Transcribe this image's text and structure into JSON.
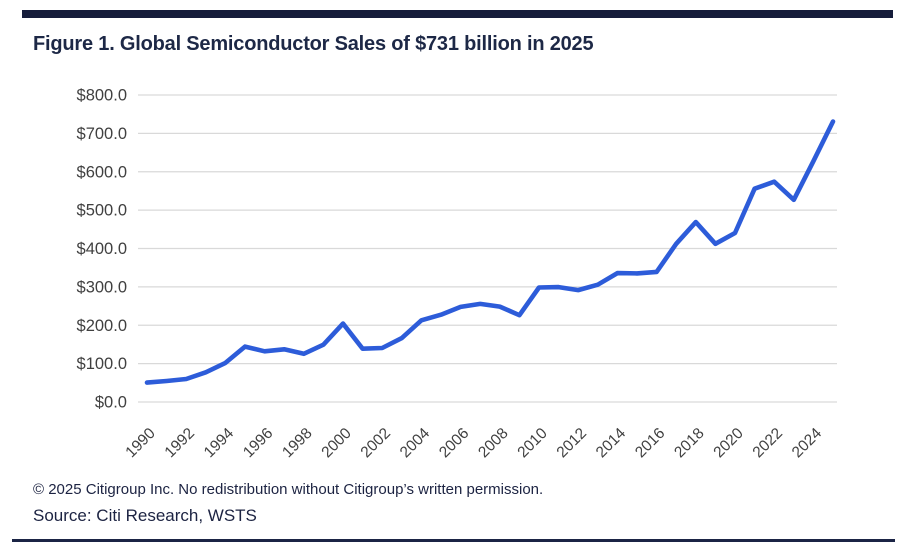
{
  "header": {
    "title": "Figure 1. Global Semiconductor Sales of $731 billion in 2025"
  },
  "footer": {
    "copyright": "© 2025 Citigroup Inc. No redistribution without Citigroup’s written permission.",
    "source": "Source: Citi Research, WSTS"
  },
  "colors": {
    "accent_bar": "#161d3b",
    "title_text": "#1d2846",
    "line": "#2d5cd9",
    "gridline": "#d9d9d9",
    "axis_text": "#404040",
    "footer_text": "#1c2342",
    "background": "#ffffff"
  },
  "chart_data": {
    "type": "line",
    "title": "Figure 1. Global Semiconductor Sales of $731 billion in 2025",
    "x": [
      1990,
      1991,
      1992,
      1993,
      1994,
      1995,
      1996,
      1997,
      1998,
      1999,
      2000,
      2001,
      2002,
      2003,
      2004,
      2005,
      2006,
      2007,
      2008,
      2009,
      2010,
      2011,
      2012,
      2013,
      2014,
      2015,
      2016,
      2017,
      2018,
      2019,
      2020,
      2021,
      2022,
      2023,
      2024,
      2025
    ],
    "values": [
      50.5,
      54.6,
      59.9,
      77.3,
      101.9,
      144.4,
      132.0,
      137.2,
      125.6,
      149.4,
      204.4,
      139.0,
      140.7,
      166.4,
      213.0,
      227.5,
      247.7,
      255.6,
      248.6,
      226.3,
      298.3,
      299.5,
      291.6,
      305.6,
      335.8,
      335.2,
      338.9,
      412.2,
      468.8,
      412.3,
      440.4,
      555.9,
      574.1,
      526.9,
      627.6,
      731.0
    ],
    "xlabel": "",
    "ylabel": "",
    "ylim": [
      0,
      800
    ],
    "ytick_step": 100,
    "ytick_prefix": "$",
    "ytick_decimals": 1,
    "xtick_labels": [
      "1990",
      "1992",
      "1994",
      "1996",
      "1998",
      "2000",
      "2002",
      "2004",
      "2006",
      "2008",
      "2010",
      "2012",
      "2014",
      "2016",
      "2018",
      "2020",
      "2022",
      "2024"
    ],
    "grid": true,
    "legend": false
  }
}
